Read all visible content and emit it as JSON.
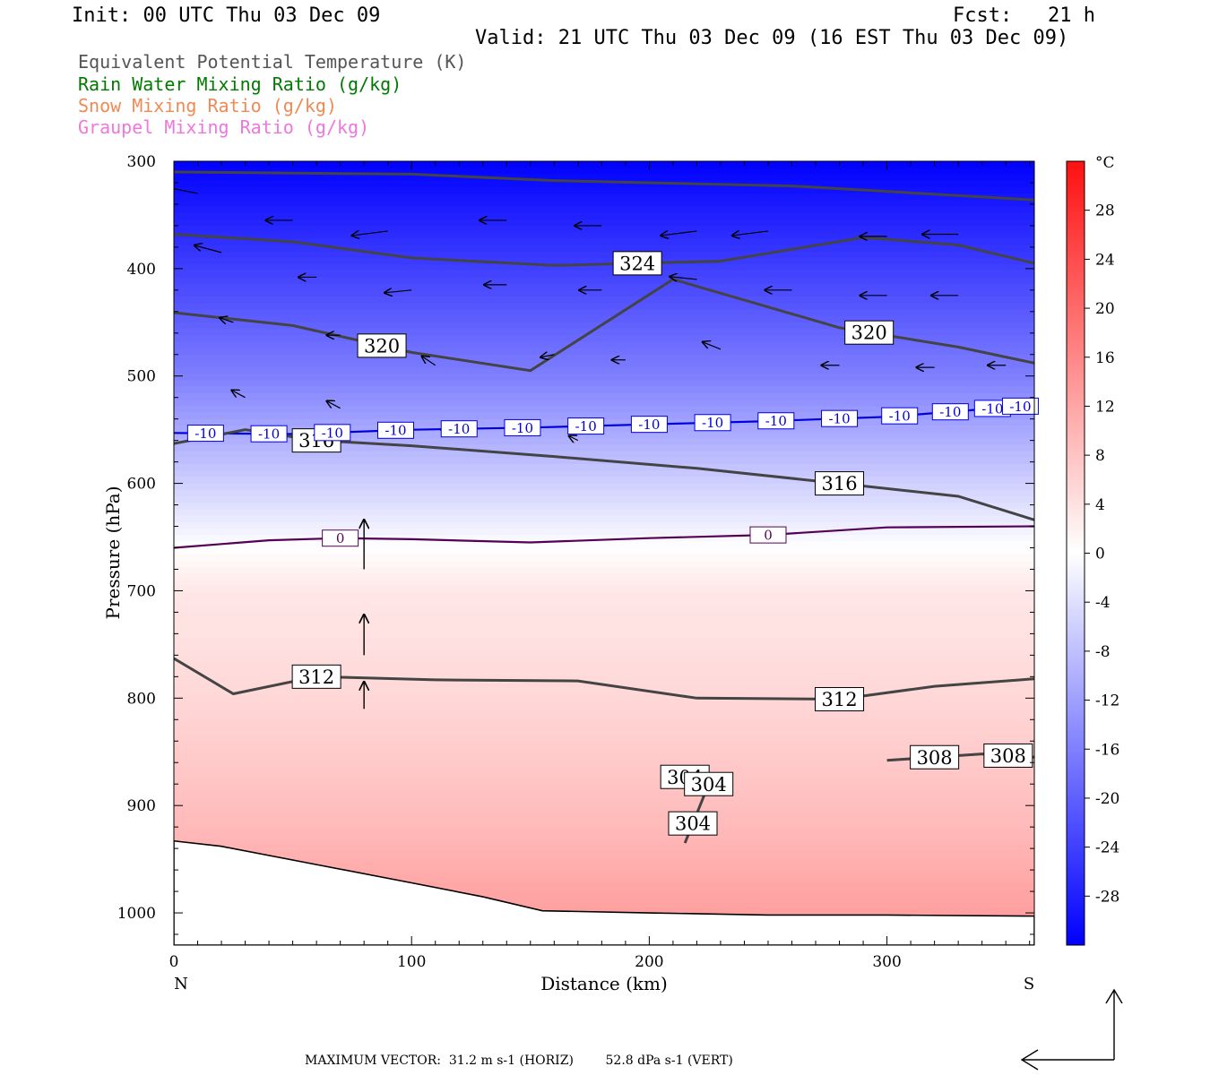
{
  "header": {
    "init": "Init: 00 UTC Thu 03 Dec 09",
    "fcst": "Fcst:   21 h",
    "valid": "Valid: 21 UTC Thu 03 Dec 09 (16 EST Thu 03 Dec 09)"
  },
  "legend": {
    "items": [
      {
        "label": "Equivalent Potential Temperature (K)",
        "color": "#555555"
      },
      {
        "label": "Rain Water Mixing Ratio (g/kg)",
        "color": "#007a00"
      },
      {
        "label": "Snow Mixing Ratio (g/kg)",
        "color": "#ee8a55"
      },
      {
        "label": "Graupel Mixing Ratio (g/kg)",
        "color": "#ee77dd"
      }
    ]
  },
  "footer": {
    "max_vector": "MAXIMUM VECTOR:  31.2 m s-1 (HORIZ)        52.8 dPa s-1 (VERT)"
  },
  "chart_data": {
    "type": "heatmap",
    "xlabel": "Distance (km)",
    "ylabel": "Pressure (hPa)",
    "xlim": [
      0,
      362
    ],
    "ylim": [
      300,
      1030
    ],
    "y_log_scale": false,
    "xticks": [
      0,
      100,
      200,
      300
    ],
    "yticks": [
      300,
      400,
      500,
      600,
      700,
      800,
      900,
      1000
    ],
    "left_end_label": "N",
    "right_end_label": "S",
    "colorbar": {
      "unit": "°C",
      "ticks": [
        28,
        24,
        20,
        16,
        12,
        8,
        4,
        0,
        -4,
        -8,
        -12,
        -16,
        -20,
        -24,
        -28
      ],
      "range": [
        -32,
        32
      ],
      "cold_color": "#0000ff",
      "zero_color": "#ffffff",
      "warm_color": "#ff0000"
    },
    "temperature_field": {
      "pressure_levels": [
        300,
        400,
        500,
        560,
        620,
        660,
        700,
        800,
        900,
        1000
      ],
      "temperature_c": [
        -32,
        -24,
        -16,
        -10,
        -4,
        0,
        3,
        5,
        8,
        12
      ]
    },
    "isotherms": [
      {
        "value": -10,
        "color": "#0000dd",
        "points": [
          [
            0,
            553
          ],
          [
            50,
            554
          ],
          [
            100,
            550
          ],
          [
            150,
            548
          ],
          [
            200,
            545
          ],
          [
            250,
            542
          ],
          [
            300,
            538
          ],
          [
            340,
            531
          ],
          [
            362,
            527
          ]
        ],
        "labels": [
          "-10",
          "-10",
          "-10",
          "-10",
          "-10",
          "-10",
          "-10",
          "-10",
          "-10",
          "-10",
          "-10",
          "-10",
          "-10",
          "-10",
          "-10"
        ]
      },
      {
        "value": 0,
        "color": "#550055",
        "points": [
          [
            0,
            660
          ],
          [
            40,
            653
          ],
          [
            70,
            651
          ],
          [
            100,
            652
          ],
          [
            150,
            655
          ],
          [
            200,
            651
          ],
          [
            250,
            648
          ],
          [
            300,
            641
          ],
          [
            362,
            640
          ]
        ],
        "labels": [
          "0",
          "0"
        ]
      }
    ],
    "theta_e_contours": [
      {
        "value": 320,
        "points": [
          [
            0,
            310
          ],
          [
            100,
            312
          ],
          [
            160,
            318
          ],
          [
            260,
            323
          ],
          [
            362,
            336
          ]
        ],
        "labels": []
      },
      {
        "value": 324,
        "points": [
          [
            0,
            368
          ],
          [
            50,
            375
          ],
          [
            100,
            390
          ],
          [
            160,
            397
          ],
          [
            230,
            393
          ],
          [
            290,
            371
          ],
          [
            330,
            378
          ],
          [
            362,
            395
          ]
        ],
        "labels": [
          "324"
        ]
      },
      {
        "value": 320,
        "points": [
          [
            0,
            441
          ],
          [
            50,
            453
          ],
          [
            100,
            478
          ],
          [
            150,
            495
          ],
          [
            210,
            410
          ],
          [
            280,
            455
          ],
          [
            330,
            473
          ],
          [
            362,
            488
          ]
        ],
        "labels": [
          "320",
          "320"
        ]
      },
      {
        "value": 316,
        "points": [
          [
            0,
            563
          ],
          [
            30,
            550
          ],
          [
            60,
            560
          ],
          [
            100,
            565
          ],
          [
            160,
            575
          ],
          [
            220,
            586
          ],
          [
            280,
            600
          ],
          [
            330,
            612
          ],
          [
            362,
            634
          ]
        ],
        "labels": [
          "316",
          "316"
        ]
      },
      {
        "value": 312,
        "points": [
          [
            0,
            763
          ],
          [
            25,
            796
          ],
          [
            60,
            780
          ],
          [
            110,
            783
          ],
          [
            170,
            784
          ],
          [
            220,
            800
          ],
          [
            280,
            801
          ],
          [
            320,
            789
          ],
          [
            362,
            782
          ]
        ],
        "labels": [
          "312",
          "312"
        ]
      },
      {
        "value": 308,
        "points": [
          [
            300,
            858
          ],
          [
            340,
            852
          ],
          [
            362,
            855
          ]
        ],
        "labels": [
          "308",
          "308"
        ]
      },
      {
        "value": 304,
        "points": [
          [
            210,
            870
          ],
          [
            225,
            880
          ],
          [
            215,
            935
          ]
        ],
        "labels": [
          "304",
          "304",
          "304"
        ]
      }
    ],
    "terrain_surface": {
      "points": [
        [
          0,
          933
        ],
        [
          20,
          938
        ],
        [
          60,
          955
        ],
        [
          100,
          972
        ],
        [
          130,
          985
        ],
        [
          155,
          998
        ],
        [
          200,
          1000
        ],
        [
          250,
          1002
        ],
        [
          300,
          1002
        ],
        [
          362,
          1003
        ]
      ]
    },
    "wind_vectors": [
      [
        10,
        330,
        40,
        -8
      ],
      [
        50,
        355,
        30,
        0
      ],
      [
        90,
        365,
        40,
        5
      ],
      [
        140,
        355,
        30,
        0
      ],
      [
        180,
        360,
        30,
        0
      ],
      [
        220,
        365,
        40,
        5
      ],
      [
        250,
        365,
        40,
        5
      ],
      [
        300,
        370,
        30,
        0
      ],
      [
        330,
        368,
        40,
        0
      ],
      [
        20,
        385,
        30,
        -8
      ],
      [
        60,
        408,
        20,
        0
      ],
      [
        100,
        420,
        30,
        3
      ],
      [
        140,
        415,
        25,
        0
      ],
      [
        180,
        420,
        25,
        0
      ],
      [
        220,
        410,
        30,
        -3
      ],
      [
        260,
        420,
        30,
        0
      ],
      [
        300,
        425,
        30,
        0
      ],
      [
        330,
        425,
        30,
        0
      ],
      [
        25,
        450,
        15,
        -5
      ],
      [
        70,
        462,
        15,
        0
      ],
      [
        110,
        490,
        15,
        -10
      ],
      [
        160,
        480,
        15,
        3
      ],
      [
        190,
        485,
        15,
        0
      ],
      [
        230,
        475,
        20,
        -8
      ],
      [
        280,
        490,
        20,
        0
      ],
      [
        320,
        492,
        20,
        0
      ],
      [
        350,
        490,
        20,
        0
      ],
      [
        30,
        520,
        15,
        -8
      ],
      [
        70,
        530,
        15,
        -8
      ],
      [
        120,
        550,
        20,
        0
      ],
      [
        170,
        560,
        10,
        -5
      ]
    ],
    "vertical_vectors": [
      [
        80,
        680,
        0,
        -55
      ],
      [
        80,
        760,
        0,
        -45
      ],
      [
        80,
        810,
        0,
        -30
      ]
    ]
  }
}
